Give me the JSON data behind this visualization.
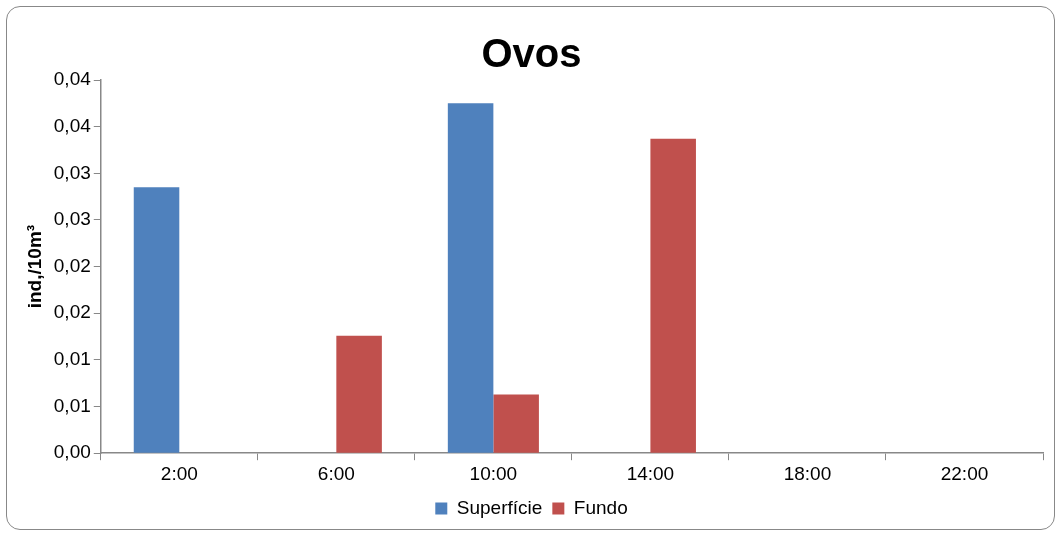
{
  "chart_data": {
    "type": "bar",
    "title": "Ovos",
    "ylabel": "ind,/10m³",
    "categories": [
      "2:00",
      "6:00",
      "10:00",
      "14:00",
      "18:00",
      "22:00"
    ],
    "series": [
      {
        "name": "Superfície",
        "color": "#4f81bd",
        "values": [
          0.0285,
          0,
          0.0375,
          0,
          0,
          0
        ]
      },
      {
        "name": "Fundo",
        "color": "#c0504d",
        "values": [
          0,
          0.0126,
          0.0063,
          0.0337,
          0,
          0
        ]
      }
    ],
    "ylim": [
      0,
      0.04
    ],
    "yticks": [
      {
        "value": 0,
        "label": "0,00"
      },
      {
        "value": 0.005,
        "label": "0,01"
      },
      {
        "value": 0.01,
        "label": "0,01"
      },
      {
        "value": 0.015,
        "label": "0,02"
      },
      {
        "value": 0.02,
        "label": "0,02"
      },
      {
        "value": 0.025,
        "label": "0,03"
      },
      {
        "value": 0.03,
        "label": "0,03"
      },
      {
        "value": 0.035,
        "label": "0,04"
      },
      {
        "value": 0.04,
        "label": "0,04"
      }
    ],
    "grid": false,
    "legend": "bottom"
  }
}
